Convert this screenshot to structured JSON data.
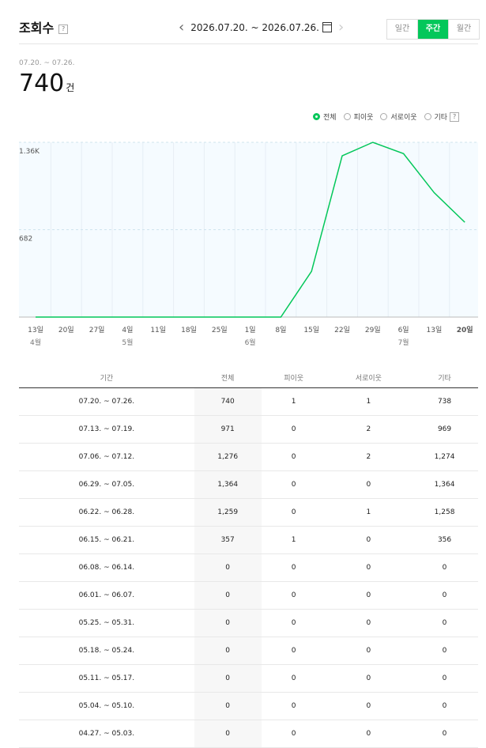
{
  "header": {
    "title": "조회수",
    "help": "?",
    "date_range": "2026.07.20. ~ 2026.07.26.",
    "tabs": [
      "일간",
      "주간",
      "월간"
    ],
    "active_tab": "주간"
  },
  "summary": {
    "range": "07.20. ~ 07.26.",
    "value": "740",
    "unit": "건"
  },
  "legend": {
    "items": [
      "전체",
      "피이웃",
      "서로이웃",
      "기타"
    ],
    "selected": "전체",
    "help": "?"
  },
  "chart_data": {
    "type": "line",
    "x": [
      "13일",
      "20일",
      "27일",
      "4일",
      "11일",
      "18일",
      "25일",
      "1일",
      "8일",
      "15일",
      "22일",
      "29일",
      "6일",
      "13일",
      "20일"
    ],
    "month_labels": [
      {
        "index": 0,
        "text": "4월"
      },
      {
        "index": 3,
        "text": "5월"
      },
      {
        "index": 7,
        "text": "6월"
      },
      {
        "index": 12,
        "text": "7월"
      }
    ],
    "series": [
      {
        "values": [
          0,
          0,
          0,
          0,
          0,
          0,
          0,
          0,
          0,
          357,
          1259,
          1364,
          1276,
          971,
          740
        ],
        "color": "#03c75a"
      }
    ],
    "ylim": [
      0,
      1364
    ],
    "y_ticks": [
      {
        "value": 682,
        "label": "682"
      },
      {
        "value": 1364,
        "label": "1.36K"
      }
    ],
    "grid": true
  },
  "table": {
    "columns": [
      "기간",
      "전체",
      "피이웃",
      "서로이웃",
      "기타"
    ],
    "rows": [
      [
        "07.20. ~ 07.26.",
        "740",
        "1",
        "1",
        "738"
      ],
      [
        "07.13. ~ 07.19.",
        "971",
        "0",
        "2",
        "969"
      ],
      [
        "07.06. ~ 07.12.",
        "1,276",
        "0",
        "2",
        "1,274"
      ],
      [
        "06.29. ~ 07.05.",
        "1,364",
        "0",
        "0",
        "1,364"
      ],
      [
        "06.22. ~ 06.28.",
        "1,259",
        "0",
        "1",
        "1,258"
      ],
      [
        "06.15. ~ 06.21.",
        "357",
        "1",
        "0",
        "356"
      ],
      [
        "06.08. ~ 06.14.",
        "0",
        "0",
        "0",
        "0"
      ],
      [
        "06.01. ~ 06.07.",
        "0",
        "0",
        "0",
        "0"
      ],
      [
        "05.25. ~ 05.31.",
        "0",
        "0",
        "0",
        "0"
      ],
      [
        "05.18. ~ 05.24.",
        "0",
        "0",
        "0",
        "0"
      ],
      [
        "05.11. ~ 05.17.",
        "0",
        "0",
        "0",
        "0"
      ],
      [
        "05.04. ~ 05.10.",
        "0",
        "0",
        "0",
        "0"
      ],
      [
        "04.27. ~ 05.03.",
        "0",
        "0",
        "0",
        "0"
      ]
    ]
  }
}
